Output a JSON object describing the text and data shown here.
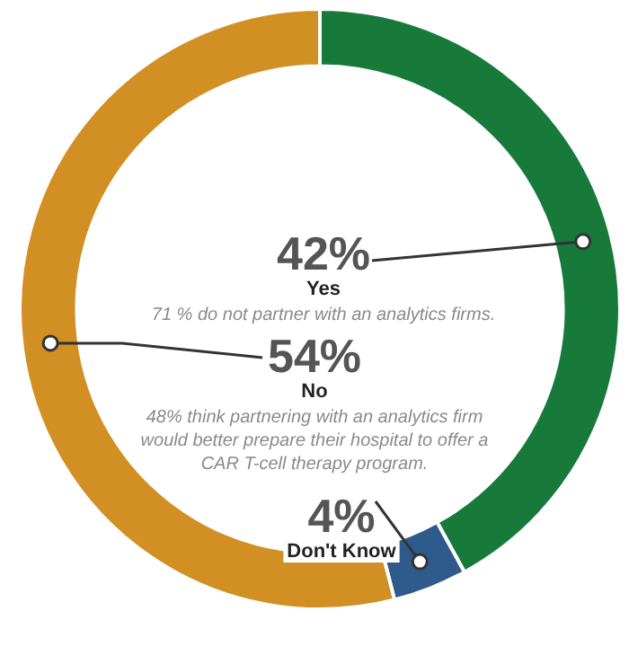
{
  "chart_data": {
    "type": "donut",
    "categories": [
      "Yes",
      "Don't Know",
      "No"
    ],
    "values": [
      42,
      4,
      54
    ],
    "value_labels": [
      "42%",
      "4%",
      "54%"
    ],
    "colors": [
      "#177a3b",
      "#2e5a8c",
      "#d18f24"
    ],
    "legend": false,
    "annotations": [
      "71 % do not partner with an analytics firms.",
      "48% think partnering with an analytics firm would better prepare their hospital to offer a CAR T-cell therapy program."
    ]
  }
}
